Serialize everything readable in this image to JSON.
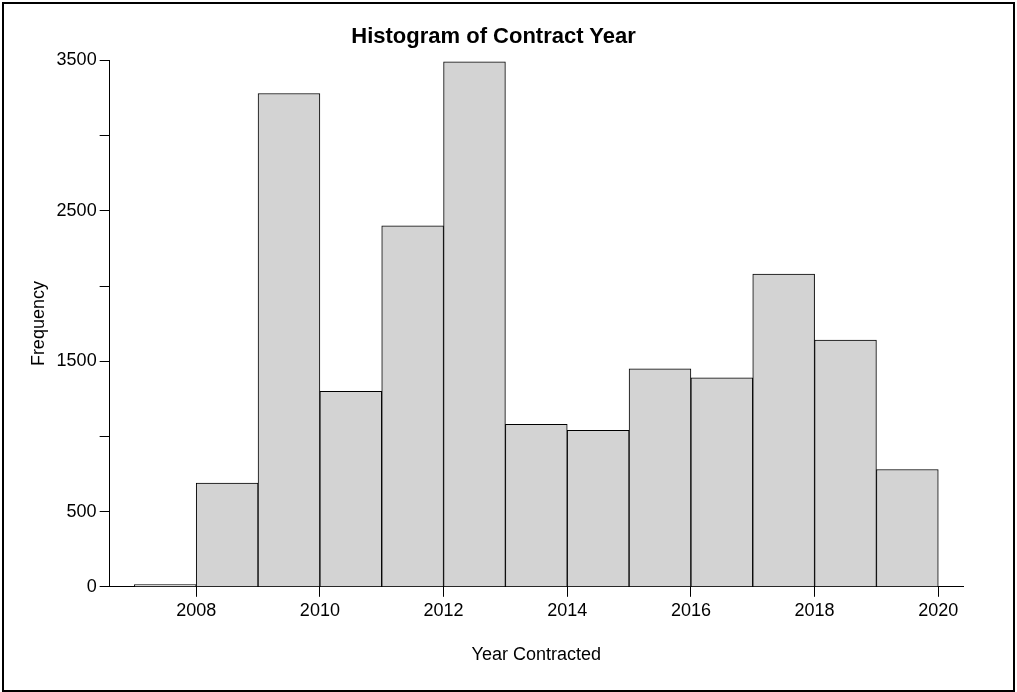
{
  "chart_data": {
    "type": "histogram",
    "title": "Histogram of Contract Year",
    "xlabel": "Year Contracted",
    "ylabel": "Frequency",
    "bins": [
      2007,
      2008,
      2009,
      2010,
      2011,
      2012,
      2013,
      2014,
      2015,
      2016,
      2017,
      2018,
      2019,
      2020
    ],
    "values": [
      15,
      690,
      3280,
      1300,
      2400,
      3490,
      1080,
      1040,
      1450,
      1390,
      2080,
      1640,
      780
    ],
    "color": "#d3d3d3",
    "xlim": [
      2006.6,
      2020.4
    ],
    "xticks": [
      2008,
      2010,
      2012,
      2014,
      2016,
      2018,
      2020
    ],
    "ylim": [
      0,
      3500
    ],
    "yticks": [
      0,
      500,
      {
        "value": 1000,
        "label": null
      },
      1500,
      {
        "value": 2000,
        "label": null
      },
      2500,
      {
        "value": 3000,
        "label": null
      },
      3500
    ],
    "grid": false,
    "legend": false
  }
}
